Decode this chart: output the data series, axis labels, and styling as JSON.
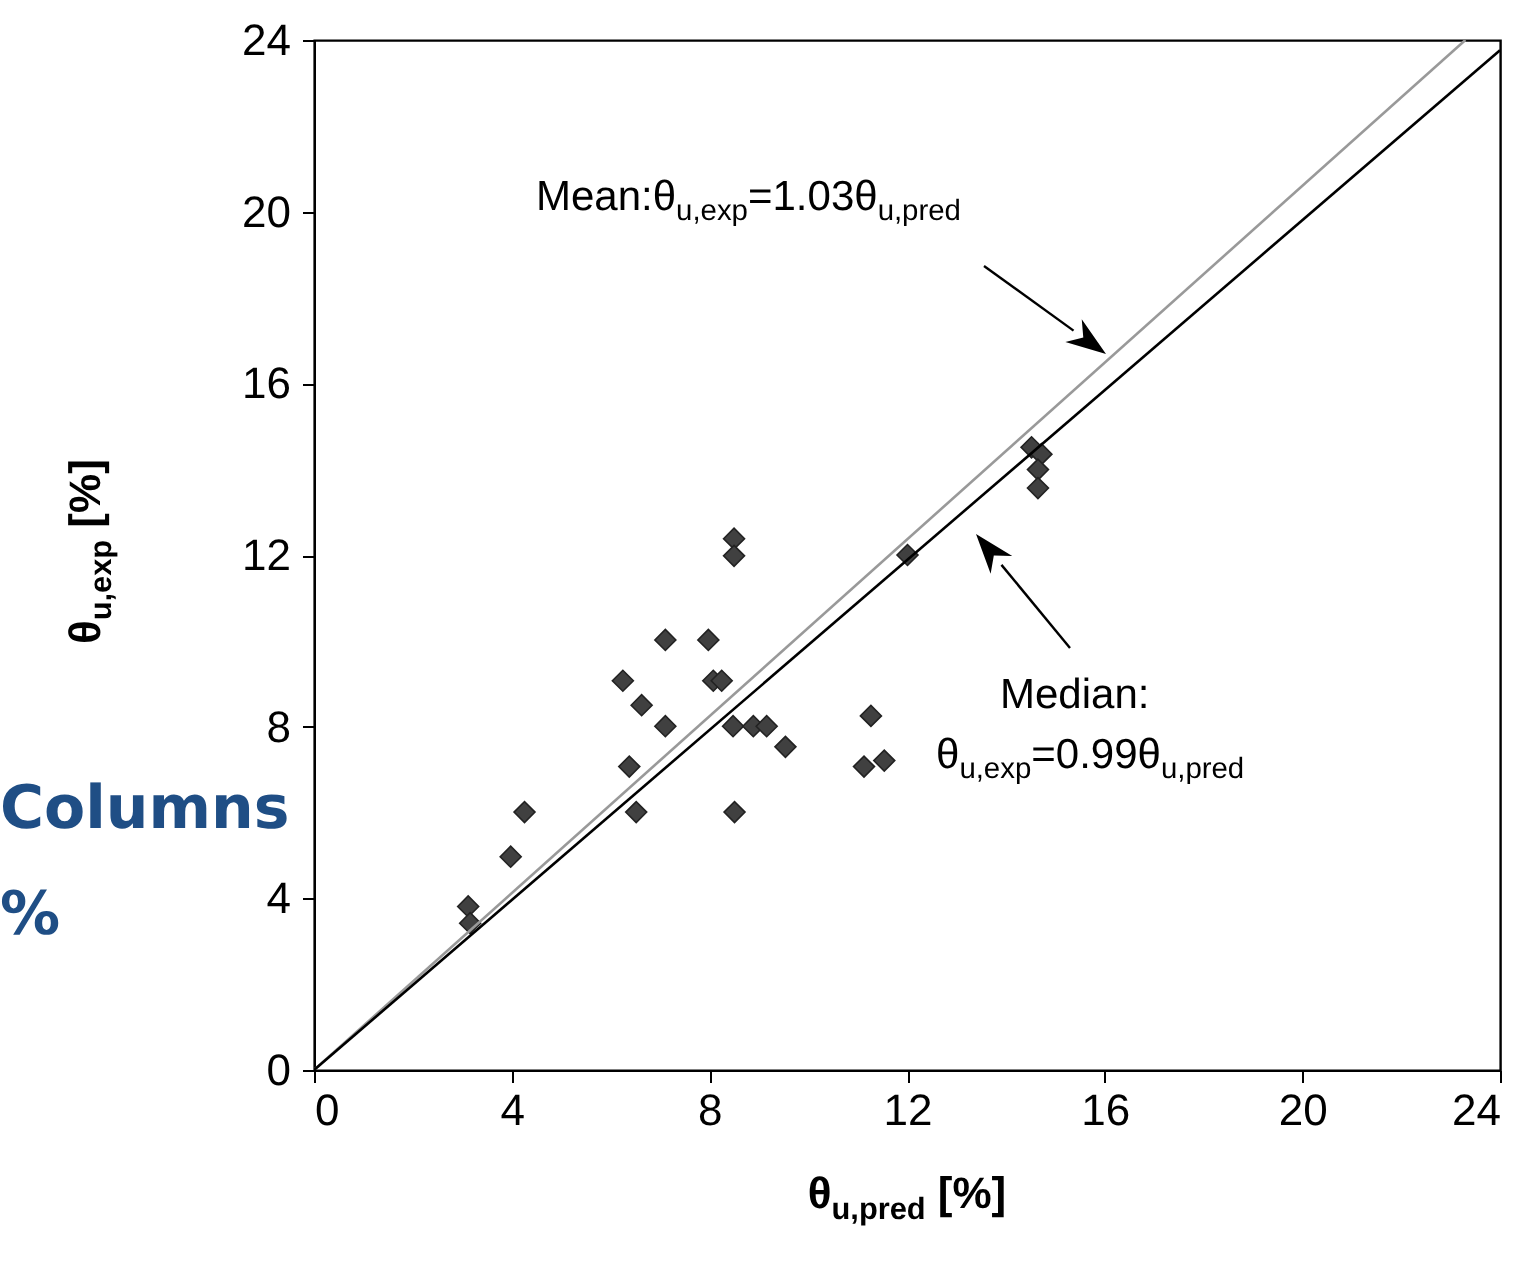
{
  "chart_data": {
    "type": "scatter",
    "xlabel": "θ$_{u,pred}$ [%]",
    "ylabel": "θ$_{u,exp}$ [%]",
    "xlim": [
      0,
      24
    ],
    "xticks": [
      0,
      4,
      8,
      12,
      16,
      20,
      24
    ],
    "ylim": [
      0,
      24
    ],
    "yticks": [
      0,
      4,
      8,
      12,
      16,
      20,
      24
    ],
    "grid": false,
    "marker": "diamond",
    "series": [
      {
        "color": "#404040",
        "x": [
          3.12,
          3.16,
          3.98,
          4.26,
          6.25,
          6.63,
          7.11,
          6.38,
          6.52,
          7.11,
          7.98,
          8.08,
          8.25,
          8.5,
          8.5,
          8.48,
          8.89,
          9.16,
          9.54,
          8.51,
          11.27,
          11.13,
          11.54,
          12.01,
          14.52,
          14.72,
          14.65,
          14.65
        ],
        "values": [
          3.81,
          3.42,
          4.97,
          6.01,
          9.07,
          8.5,
          8.01,
          7.07,
          6.01,
          10.02,
          10.02,
          9.07,
          9.07,
          12.38,
          11.98,
          8.01,
          8.01,
          8.01,
          7.53,
          6.01,
          8.25,
          7.07,
          7.21,
          12.0,
          14.51,
          14.35,
          13.99,
          13.56
        ]
      },
      {
        "type": "line",
        "marker": "none",
        "color": "#999999",
        "x": [
          0,
          23.3
        ],
        "values": [
          0,
          24
        ]
      },
      {
        "type": "line",
        "marker": "none",
        "color": "#000000",
        "x": [
          0,
          24
        ],
        "values": [
          0,
          23.76
        ]
      }
    ],
    "annotations": [
      "Mean:θ$_{u,exp}$=1.03θ$_{u,pred}$",
      "Median:\nθ$_{u,exp}$=0.99θ$_{u,pred}$",
      "Columns",
      "%"
    ]
  }
}
